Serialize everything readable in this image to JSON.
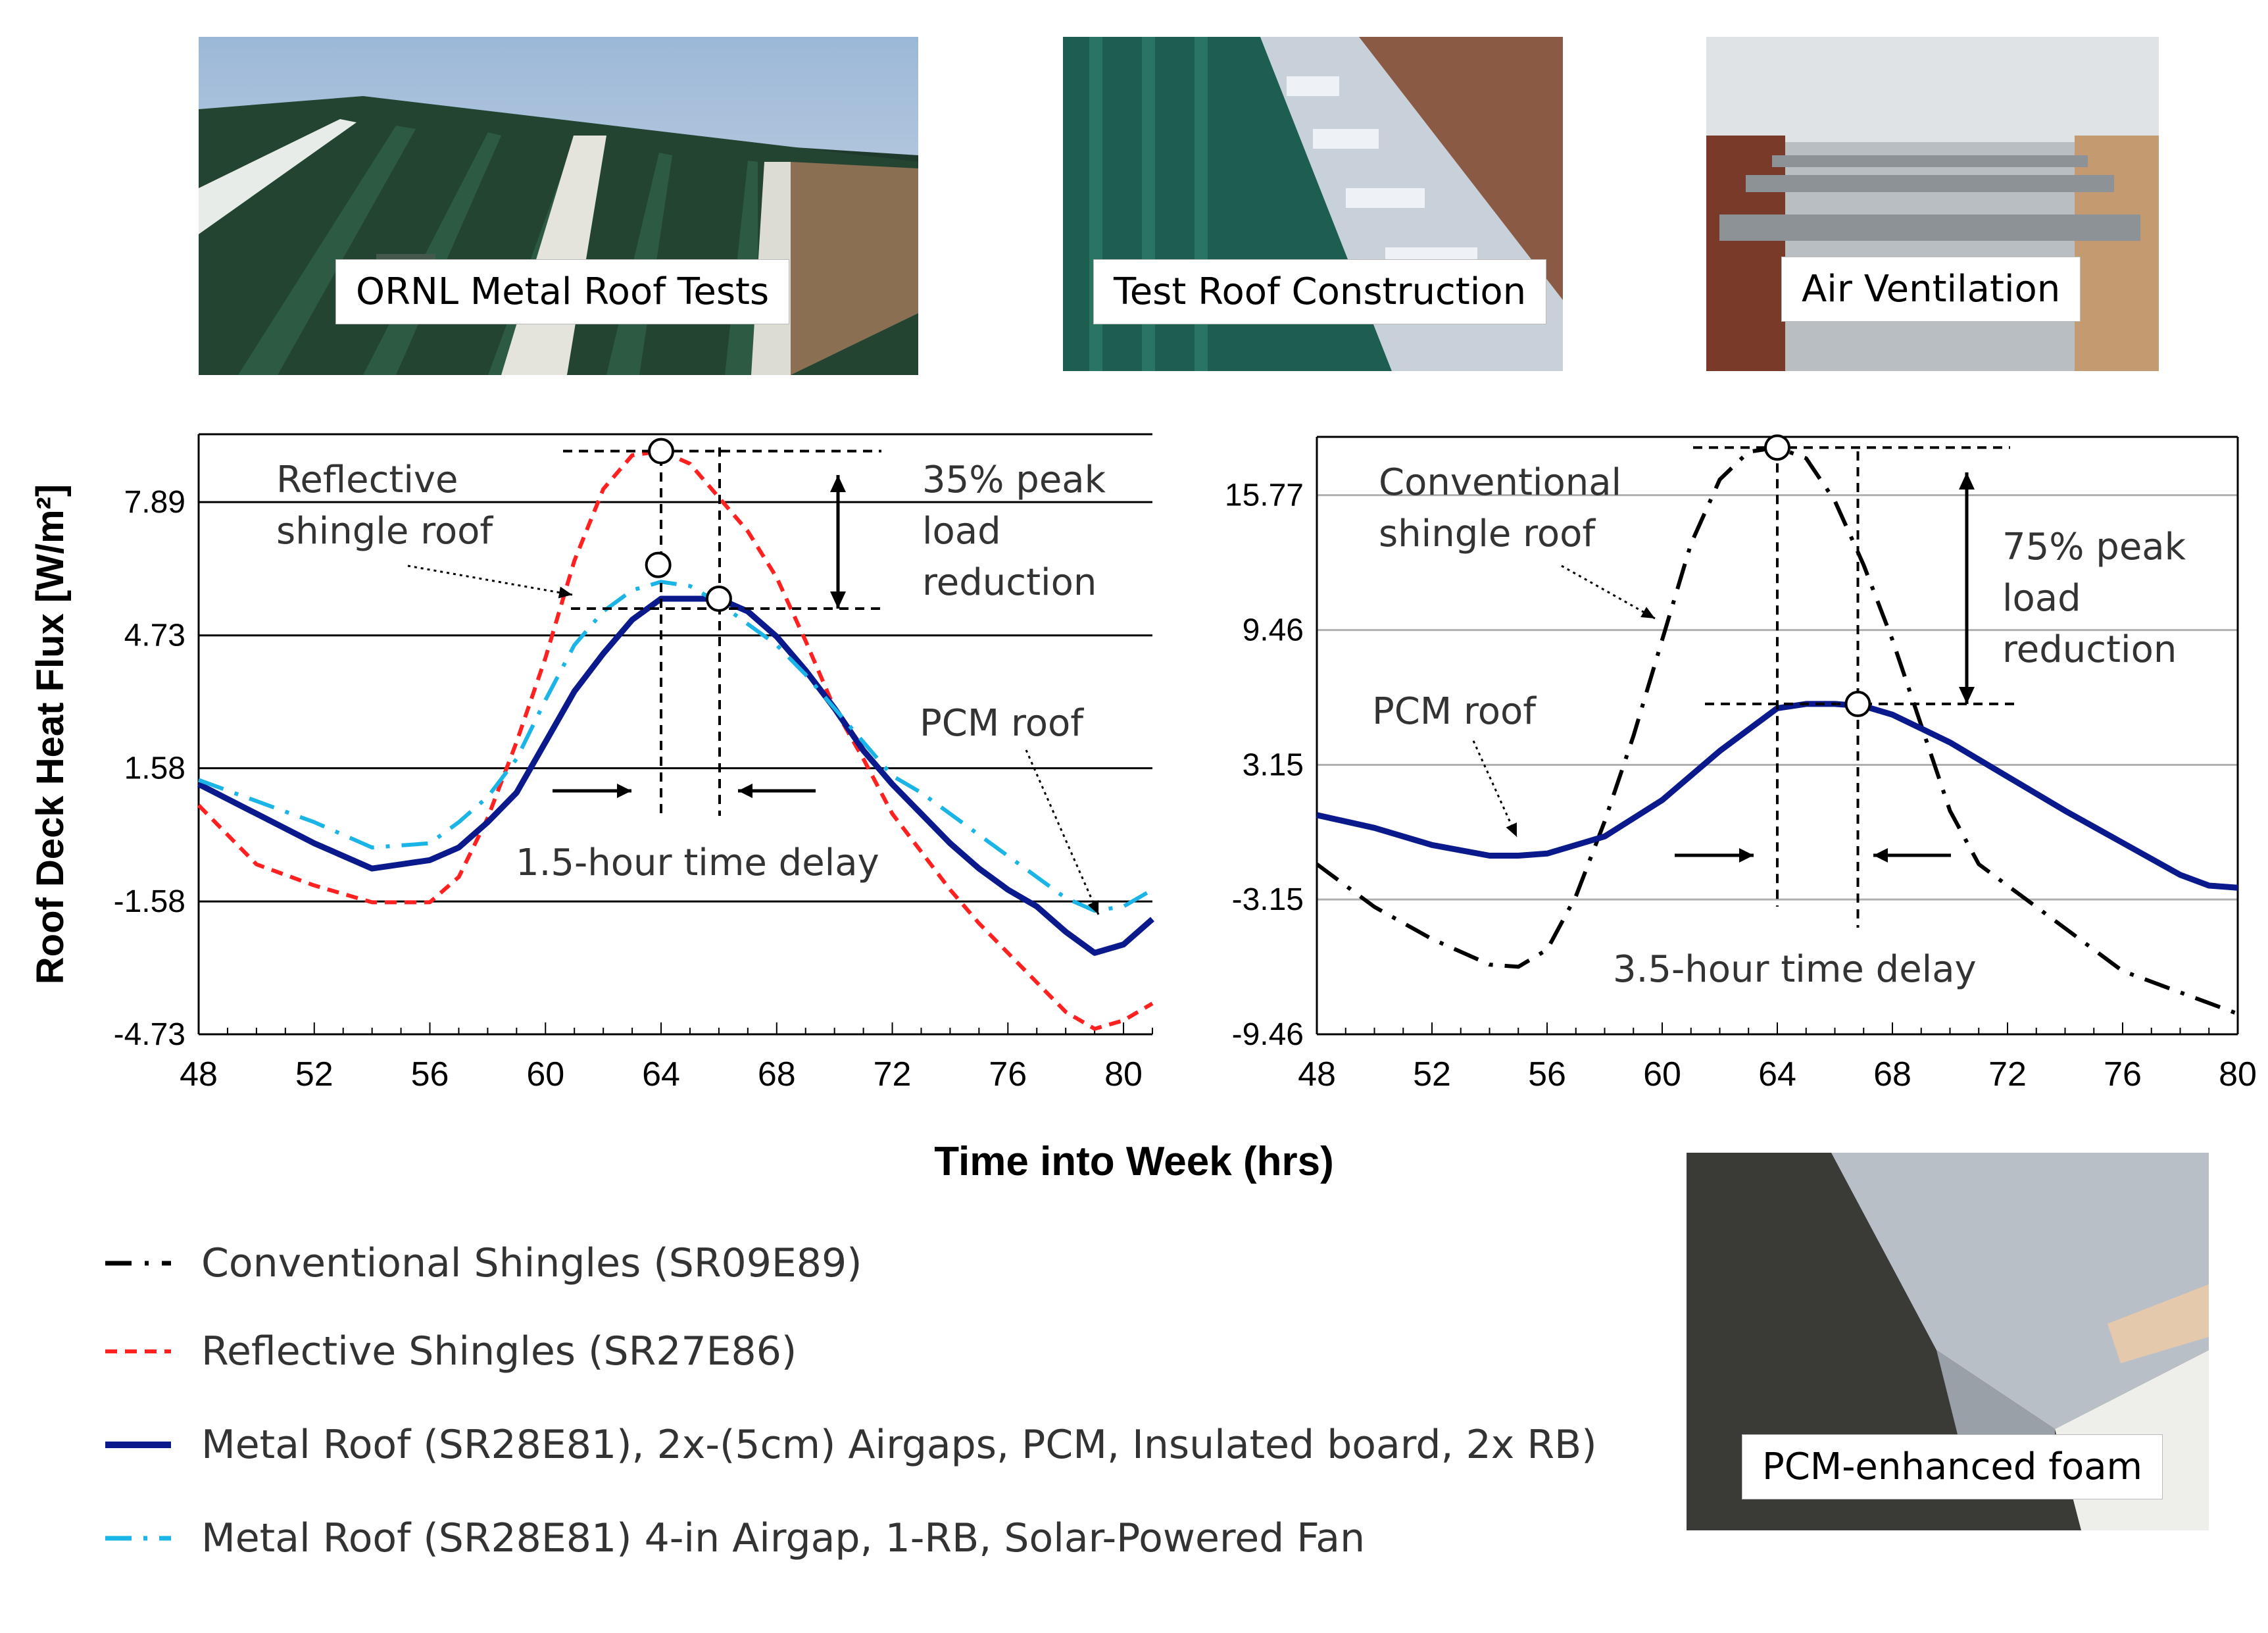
{
  "photos": {
    "photo1": {
      "caption": "ORNL Metal Roof Tests"
    },
    "photo2": {
      "caption": "Test Roof Construction"
    },
    "photo3": {
      "caption": "Air Ventilation"
    },
    "photo4": {
      "caption": "PCM-enhanced foam"
    }
  },
  "xlabel": "Time into Week (hrs)",
  "legend": [
    {
      "label": "Conventional Shingles (SR09E89)",
      "color": "#000000",
      "style": "dashdot"
    },
    {
      "label": "Reflective Shingles (SR27E86)",
      "color": "#ff2020",
      "style": "dashed"
    },
    {
      "label": "Metal Roof (SR28E81), 2x-(5cm) Airgaps, PCM, Insulated board, 2x RB)",
      "color": "#0a1a8c",
      "style": "solid"
    },
    {
      "label": "Metal Roof (SR28E81) 4-in Airgap, 1-RB, Solar-Powered Fan",
      "color": "#1ab4e6",
      "style": "dashdot"
    }
  ],
  "chart_data": [
    {
      "type": "line",
      "ylabel": "Roof Deck Heat Flux  [W/m²]",
      "xlabel": "Time into Week (hrs)",
      "xlim": [
        48,
        81
      ],
      "ylim": [
        -4.73,
        9.5
      ],
      "xticks": [
        "48",
        "52",
        "56",
        "60",
        "64",
        "68",
        "72",
        "76",
        "80"
      ],
      "yticks": [
        "7.89",
        "4.73",
        "1.58",
        "-1.58",
        "-4.73"
      ],
      "series": [
        {
          "name": "Reflective Shingles (SR27E86)",
          "color": "#ff2020",
          "dash": "dashed",
          "x": [
            48,
            50,
            52,
            54,
            56,
            57,
            58,
            59,
            60,
            61,
            62,
            63,
            64,
            65,
            66,
            67,
            68,
            69,
            70,
            71,
            72,
            73,
            74,
            75,
            76,
            77,
            78,
            79,
            80,
            81
          ],
          "y": [
            0.7,
            -0.7,
            -1.2,
            -1.6,
            -1.6,
            -1.0,
            0.4,
            2.2,
            4.2,
            6.5,
            8.2,
            9.0,
            9.1,
            8.8,
            8.0,
            7.2,
            6.1,
            4.6,
            3.0,
            1.8,
            0.5,
            -0.4,
            -1.3,
            -2.1,
            -2.8,
            -3.5,
            -4.2,
            -4.6,
            -4.4,
            -4.0
          ]
        },
        {
          "name": "Metal Roof (SR28E81), 2x-(5cm) Airgaps, PCM, Insulated board, 2x RB)",
          "color": "#0a1a8c",
          "dash": "solid",
          "x": [
            48,
            50,
            52,
            54,
            55,
            56,
            57,
            58,
            59,
            60,
            61,
            62,
            63,
            64,
            65,
            66,
            67,
            68,
            69,
            70,
            71,
            72,
            73,
            74,
            75,
            76,
            77,
            78,
            79,
            80,
            81
          ],
          "y": [
            1.2,
            0.5,
            -0.2,
            -0.8,
            -0.7,
            -0.6,
            -0.3,
            0.3,
            1.0,
            2.2,
            3.4,
            4.3,
            5.1,
            5.6,
            5.6,
            5.6,
            5.3,
            4.7,
            3.9,
            3.0,
            2.0,
            1.2,
            0.5,
            -0.2,
            -0.8,
            -1.3,
            -1.7,
            -2.3,
            -2.8,
            -2.6,
            -2.0
          ]
        },
        {
          "name": "Metal Roof (SR28E81) 4-in Airgap, 1-RB, Solar-Powered Fan",
          "color": "#1ab4e6",
          "dash": "dashdot",
          "x": [
            48,
            50,
            52,
            54,
            56,
            57,
            58,
            59,
            60,
            61,
            62,
            63,
            64,
            65,
            66,
            67,
            68,
            69,
            70,
            71,
            72,
            73,
            74,
            75,
            76,
            77,
            78,
            79,
            80,
            81
          ],
          "y": [
            1.3,
            0.8,
            0.3,
            -0.3,
            -0.2,
            0.3,
            0.9,
            1.8,
            3.2,
            4.5,
            5.3,
            5.8,
            6.0,
            5.9,
            5.5,
            5.0,
            4.5,
            3.8,
            3.0,
            2.2,
            1.4,
            1.0,
            0.5,
            0.0,
            -0.5,
            -1.0,
            -1.5,
            -1.8,
            -1.7,
            -1.3
          ]
        }
      ],
      "annotations": {
        "label_reflective": [
          "Reflective",
          "shingle roof"
        ],
        "label_reduction": [
          "35% peak",
          "load",
          "reduction"
        ],
        "label_pcm": "PCM roof",
        "label_delay": "1.5-hour time delay"
      }
    },
    {
      "type": "line",
      "xlim": [
        48,
        80
      ],
      "ylim": [
        -9.46,
        18.5
      ],
      "xticks": [
        "48",
        "52",
        "56",
        "60",
        "64",
        "68",
        "72",
        "76",
        "80"
      ],
      "yticks": [
        "15.77",
        "9.46",
        "3.15",
        "-3.15",
        "-9.46"
      ],
      "series": [
        {
          "name": "Conventional Shingles (SR09E89)",
          "color": "#000000",
          "dash": "dashdot",
          "x": [
            48,
            50,
            52,
            54,
            55,
            56,
            57,
            58,
            59,
            60,
            61,
            62,
            63,
            64,
            65,
            66,
            67,
            68,
            69,
            70,
            71,
            72,
            73,
            74,
            75,
            76,
            77,
            78,
            79,
            80
          ],
          "y": [
            -1.5,
            -3.5,
            -5.0,
            -6.2,
            -6.3,
            -5.5,
            -3.0,
            0.5,
            4.5,
            9.0,
            13.5,
            16.5,
            17.8,
            18.0,
            17.5,
            15.5,
            12.5,
            9.0,
            5.0,
            1.0,
            -1.5,
            -2.5,
            -3.5,
            -4.5,
            -5.5,
            -6.5,
            -7.0,
            -7.5,
            -8.0,
            -8.5
          ]
        },
        {
          "name": "Metal Roof (SR28E81), 2x-(5cm) Airgaps, PCM, Insulated board, 2x RB)",
          "color": "#0a1a8c",
          "dash": "solid",
          "x": [
            48,
            50,
            52,
            54,
            55,
            56,
            57,
            58,
            60,
            62,
            64,
            65,
            66,
            67,
            68,
            70,
            72,
            74,
            76,
            78,
            79,
            80
          ],
          "y": [
            0.8,
            0.2,
            -0.6,
            -1.1,
            -1.1,
            -1.0,
            -0.6,
            -0.2,
            1.5,
            3.8,
            5.8,
            6.0,
            6.0,
            5.9,
            5.5,
            4.2,
            2.6,
            1.0,
            -0.5,
            -2.0,
            -2.5,
            -2.6
          ]
        }
      ],
      "annotations": {
        "label_conventional": [
          "Conventional",
          "shingle roof"
        ],
        "label_reduction": [
          "75% peak",
          "load",
          "reduction"
        ],
        "label_pcm": "PCM roof",
        "label_delay": "3.5-hour time delay"
      }
    }
  ]
}
